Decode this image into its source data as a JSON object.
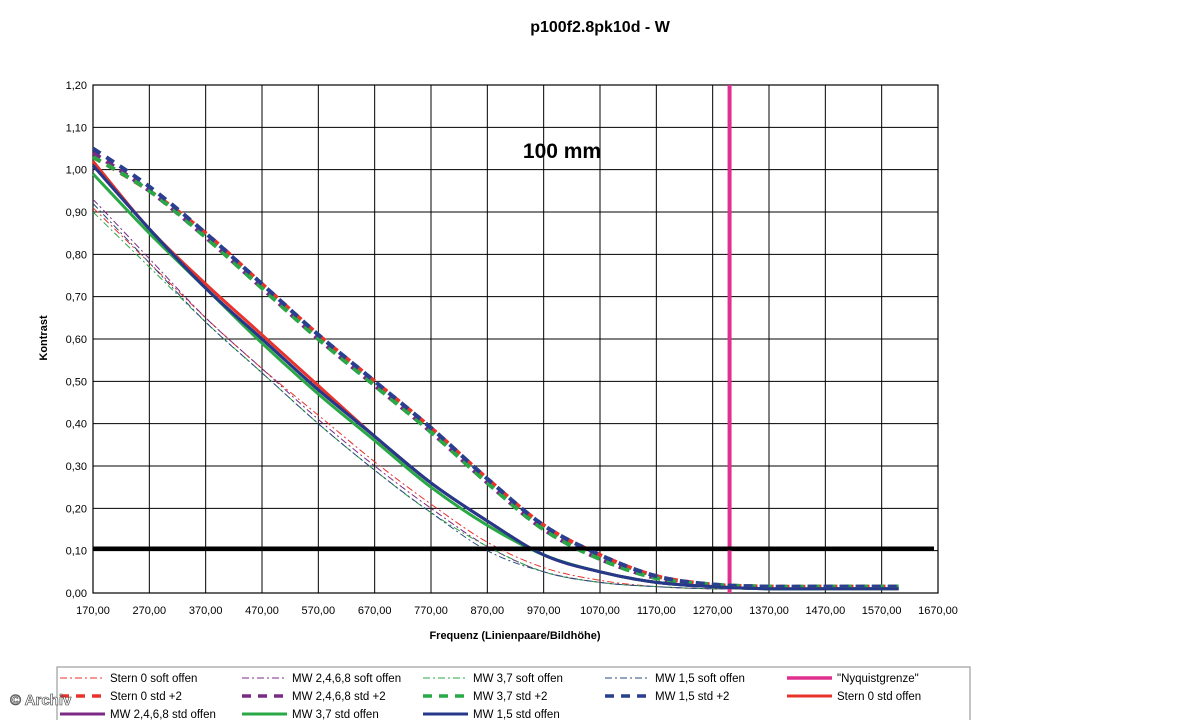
{
  "chart_data": {
    "type": "line",
    "title": "p100f2.8pk10d - W",
    "annotation": "100 mm",
    "xlabel": "Frequenz (Linienpaare/Bildhöhe)",
    "ylabel": "Kontrast",
    "xlim": [
      170,
      1670
    ],
    "ylim": [
      0,
      1.2
    ],
    "grid": true,
    "legend_position": "bottom",
    "x_ticks": [
      "170,00",
      "270,00",
      "370,00",
      "470,00",
      "570,00",
      "670,00",
      "770,00",
      "870,00",
      "970,00",
      "1070,00",
      "1170,00",
      "1270,00",
      "1370,00",
      "1470,00",
      "1570,00",
      "1670,00"
    ],
    "y_ticks": [
      "0,00",
      "0,10",
      "0,20",
      "0,30",
      "0,40",
      "0,50",
      "0,60",
      "0,70",
      "0,80",
      "0,90",
      "1,00",
      "1,10",
      "1,20"
    ],
    "x": [
      170,
      270,
      370,
      470,
      570,
      670,
      770,
      870,
      970,
      1070,
      1170,
      1270,
      1370,
      1470,
      1600
    ],
    "series": [
      {
        "name": "Stern 0 soft offen",
        "style": "dashdot",
        "color": "#e8332b",
        "width": 1,
        "values": [
          0.91,
          0.78,
          0.65,
          0.53,
          0.42,
          0.31,
          0.21,
          0.12,
          0.06,
          0.03,
          0.015,
          0.01,
          0.01,
          0.01,
          0.01
        ]
      },
      {
        "name": "MW 2,4,6,8 soft offen",
        "style": "dashdot",
        "color": "#7b2a86",
        "width": 1,
        "values": [
          0.93,
          0.79,
          0.65,
          0.53,
          0.41,
          0.3,
          0.2,
          0.11,
          0.05,
          0.025,
          0.015,
          0.01,
          0.01,
          0.01,
          0.01
        ]
      },
      {
        "name": "MW 3,7 soft offen",
        "style": "dashdot",
        "color": "#2aa845",
        "width": 1,
        "values": [
          0.9,
          0.77,
          0.64,
          0.52,
          0.4,
          0.29,
          0.19,
          0.11,
          0.05,
          0.025,
          0.015,
          0.01,
          0.01,
          0.01,
          0.01
        ]
      },
      {
        "name": "MW 1,5 soft offen",
        "style": "dashdot",
        "color": "#2a4a7b",
        "width": 1,
        "values": [
          0.92,
          0.78,
          0.64,
          0.52,
          0.4,
          0.29,
          0.19,
          0.1,
          0.05,
          0.025,
          0.015,
          0.01,
          0.01,
          0.01,
          0.01
        ]
      },
      {
        "name": "\"Nyquistgrenze\"",
        "style": "vertical",
        "color": "#e0308f",
        "width": 4,
        "x": 1300
      },
      {
        "name": "Stern 0 std +2",
        "style": "bigdash",
        "color": "#e8332b",
        "width": 4,
        "values": [
          1.03,
          0.95,
          0.85,
          0.73,
          0.61,
          0.5,
          0.39,
          0.27,
          0.16,
          0.09,
          0.04,
          0.02,
          0.015,
          0.015,
          0.015
        ]
      },
      {
        "name": "MW 2,4,6,8 std +2",
        "style": "bigdash",
        "color": "#7b2a86",
        "width": 4,
        "values": [
          1.04,
          0.95,
          0.84,
          0.72,
          0.6,
          0.49,
          0.38,
          0.26,
          0.15,
          0.08,
          0.035,
          0.02,
          0.015,
          0.015,
          0.015
        ]
      },
      {
        "name": "MW 3,7 std +2",
        "style": "bigdash",
        "color": "#2aa845",
        "width": 4,
        "values": [
          1.03,
          0.95,
          0.84,
          0.72,
          0.6,
          0.49,
          0.38,
          0.26,
          0.15,
          0.08,
          0.035,
          0.02,
          0.015,
          0.015,
          0.015
        ]
      },
      {
        "name": "MW 1,5 std +2",
        "style": "bigdash",
        "color": "#2a3f8f",
        "width": 4,
        "values": [
          1.05,
          0.96,
          0.85,
          0.73,
          0.61,
          0.5,
          0.39,
          0.27,
          0.16,
          0.09,
          0.04,
          0.02,
          0.015,
          0.015,
          0.015
        ]
      },
      {
        "name": "Stern 0 std offen",
        "style": "solid",
        "color": "#e8332b",
        "width": 3,
        "values": [
          1.02,
          0.86,
          0.73,
          0.61,
          0.49,
          0.37,
          0.26,
          0.17,
          0.09,
          0.05,
          0.025,
          0.015,
          0.01,
          0.01,
          0.01
        ]
      },
      {
        "name": "MW 2,4,6,8 std offen",
        "style": "solid",
        "color": "#7b2a86",
        "width": 3,
        "values": [
          1.01,
          0.86,
          0.72,
          0.6,
          0.48,
          0.37,
          0.26,
          0.17,
          0.09,
          0.05,
          0.025,
          0.015,
          0.01,
          0.01,
          0.01
        ]
      },
      {
        "name": "MW 3,7 std offen",
        "style": "solid",
        "color": "#2aa845",
        "width": 3,
        "values": [
          0.99,
          0.85,
          0.72,
          0.59,
          0.47,
          0.36,
          0.25,
          0.16,
          0.09,
          0.05,
          0.025,
          0.015,
          0.01,
          0.01,
          0.01
        ]
      },
      {
        "name": "MW 1,5 std offen",
        "style": "solid",
        "color": "#26388a",
        "width": 3,
        "values": [
          1.01,
          0.86,
          0.72,
          0.6,
          0.48,
          0.37,
          0.26,
          0.17,
          0.09,
          0.05,
          0.025,
          0.015,
          0.01,
          0.01,
          0.01
        ]
      }
    ],
    "reference_line": {
      "y": 0.105,
      "color": "#000000"
    }
  },
  "watermark": "© Archiv"
}
